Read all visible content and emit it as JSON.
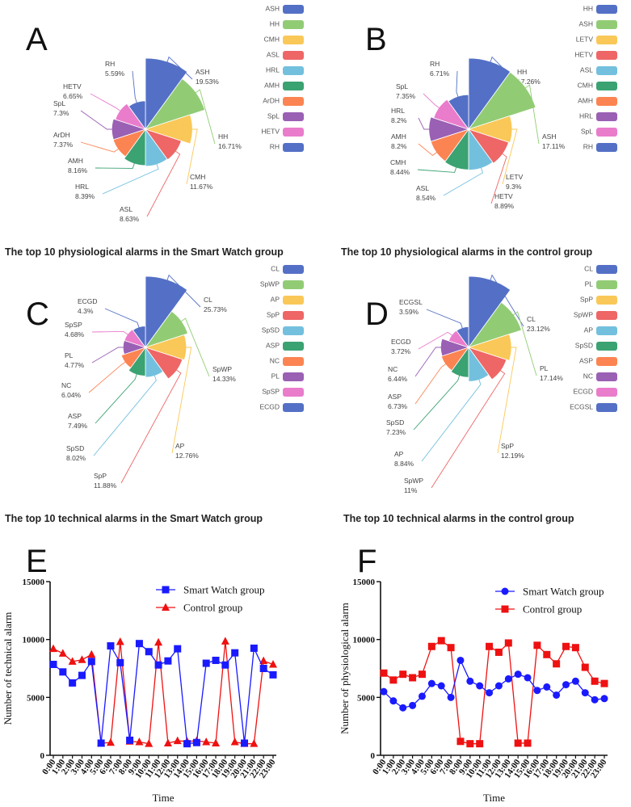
{
  "colors": [
    "#5470c6",
    "#91cc75",
    "#fac858",
    "#ee6666",
    "#73c0de",
    "#3ba272",
    "#fc8452",
    "#9a60b4",
    "#ea7ccc",
    "#5470c6"
  ],
  "chart_data": [
    {
      "id": "A",
      "type": "pie",
      "letter": "A",
      "title": "The top 10 physiological alarms in the Smart Watch group",
      "categories": [
        "ASH",
        "HH",
        "CMH",
        "ASL",
        "HRL",
        "AMH",
        "ArDH",
        "SpL",
        "HETV",
        "RH"
      ],
      "values": [
        19.53,
        16.71,
        11.67,
        8.63,
        8.39,
        8.16,
        7.37,
        7.3,
        6.65,
        5.59
      ],
      "value_labels": [
        "19.53%",
        "16.71%",
        "11.67%",
        "8.63%",
        "8.39%",
        "8.16%",
        "7.37%",
        "7.3%",
        "6.65%",
        "5.59%"
      ]
    },
    {
      "id": "B",
      "type": "pie",
      "letter": "B",
      "title": "The top 10 physiological alarms in the control group",
      "categories": [
        "HH",
        "ASH",
        "LETV",
        "HETV",
        "ASL",
        "CMH",
        "AMH",
        "HRL",
        "SpL",
        "RH"
      ],
      "values": [
        17.26,
        17.11,
        9.3,
        8.89,
        8.54,
        8.44,
        8.2,
        8.2,
        7.35,
        6.71
      ],
      "value_labels": [
        "17.26%",
        "17.11%",
        "9.3%",
        "8.89%",
        "8.54%",
        "8.44%",
        "8.2%",
        "8.2%",
        "7.35%",
        "6.71%"
      ]
    },
    {
      "id": "C",
      "type": "pie",
      "letter": "C",
      "title": "The top 10 technical alarms in the Smart Watch group",
      "categories": [
        "CL",
        "SpWP",
        "AP",
        "SpP",
        "SpSD",
        "ASP",
        "NC",
        "PL",
        "SpSP",
        "ECGD"
      ],
      "values": [
        25.73,
        14.33,
        12.76,
        11.88,
        8.02,
        7.49,
        6.04,
        4.77,
        4.68,
        4.3
      ],
      "value_labels": [
        "25.73%",
        "14.33%",
        "12.76%",
        "11.88%",
        "8.02%",
        "7.49%",
        "6.04%",
        "4.77%",
        "4.68%",
        "4.3%"
      ]
    },
    {
      "id": "D",
      "type": "pie",
      "letter": "D",
      "title": "The top 10 technical alarms in the control group",
      "categories": [
        "CL",
        "PL",
        "SpP",
        "SpWP",
        "AP",
        "SpSD",
        "ASP",
        "NC",
        "ECGD",
        "ECGSL"
      ],
      "values": [
        23.12,
        17.14,
        12.19,
        11,
        8.84,
        7.23,
        6.73,
        6.44,
        3.72,
        3.59
      ],
      "value_labels": [
        "23.12%",
        "17.14%",
        "12.19%",
        "11%",
        "8.84%",
        "7.23%",
        "6.73%",
        "6.44%",
        "3.72%",
        "3.59%"
      ]
    },
    {
      "id": "E",
      "type": "line",
      "letter": "E",
      "xlabel": "Time",
      "ylabel": "Number of technical alarm",
      "ylim": [
        0,
        15000
      ],
      "yticks": [
        "0",
        "5000",
        "10000",
        "15000"
      ],
      "x": [
        "0:00",
        "1:00",
        "2:00",
        "3:00",
        "4:00",
        "5:00",
        "6:00",
        "7:00",
        "8:00",
        "9:00",
        "10:00",
        "11:00",
        "12:00",
        "13:00",
        "14:00",
        "15:00",
        "16:00",
        "17:00",
        "18:00",
        "19:00",
        "20:00",
        "21:00",
        "22:00",
        "23:00"
      ],
      "series": [
        {
          "name": "Smart Watch group",
          "color": "#1a1aff",
          "marker": "square",
          "values": [
            7850,
            7200,
            6250,
            6900,
            8100,
            1050,
            9450,
            8000,
            1300,
            9650,
            8950,
            7800,
            8150,
            9200,
            1000,
            1100,
            7950,
            8200,
            7800,
            8850,
            1050,
            9250,
            7500,
            6950
          ]
        },
        {
          "name": "Control group",
          "color": "#ee1111",
          "marker": "triangle",
          "values": [
            9200,
            8800,
            8100,
            8250,
            8700,
            1050,
            1100,
            9800,
            1200,
            1150,
            1000,
            9750,
            1050,
            1250,
            1200,
            1250,
            1150,
            1050,
            9850,
            1150,
            1000,
            1000,
            8150,
            7850
          ]
        }
      ]
    },
    {
      "id": "F",
      "type": "line",
      "letter": "F",
      "xlabel": "Time",
      "ylabel": "Number of physiological alarm",
      "ylim": [
        0,
        15000
      ],
      "yticks": [
        "0",
        "5000",
        "10000",
        "15000"
      ],
      "x": [
        "0:00",
        "1:00",
        "2:00",
        "3:00",
        "4:00",
        "5:00",
        "6:00",
        "7:00",
        "8:00",
        "9:00",
        "10:00",
        "11:00",
        "12:00",
        "13:00",
        "14:00",
        "15:00",
        "16:00",
        "17:00",
        "18:00",
        "19:00",
        "20:00",
        "21:00",
        "22:00",
        "23:00"
      ],
      "series": [
        {
          "name": "Smart Watch group",
          "color": "#1a1aff",
          "marker": "circle",
          "values": [
            5500,
            4700,
            4100,
            4300,
            5100,
            6200,
            6000,
            5000,
            8200,
            6400,
            6000,
            5400,
            6000,
            6600,
            7000,
            6700,
            5600,
            5900,
            5200,
            6100,
            6400,
            5400,
            4800,
            4900
          ]
        },
        {
          "name": "Control group",
          "color": "#ee1111",
          "marker": "square",
          "values": [
            7100,
            6500,
            7000,
            6700,
            7000,
            9400,
            9900,
            9300,
            1200,
            1000,
            1000,
            9400,
            8900,
            9700,
            1050,
            1050,
            9500,
            8700,
            7900,
            9400,
            9300,
            7600,
            6400,
            6200
          ]
        }
      ]
    }
  ]
}
